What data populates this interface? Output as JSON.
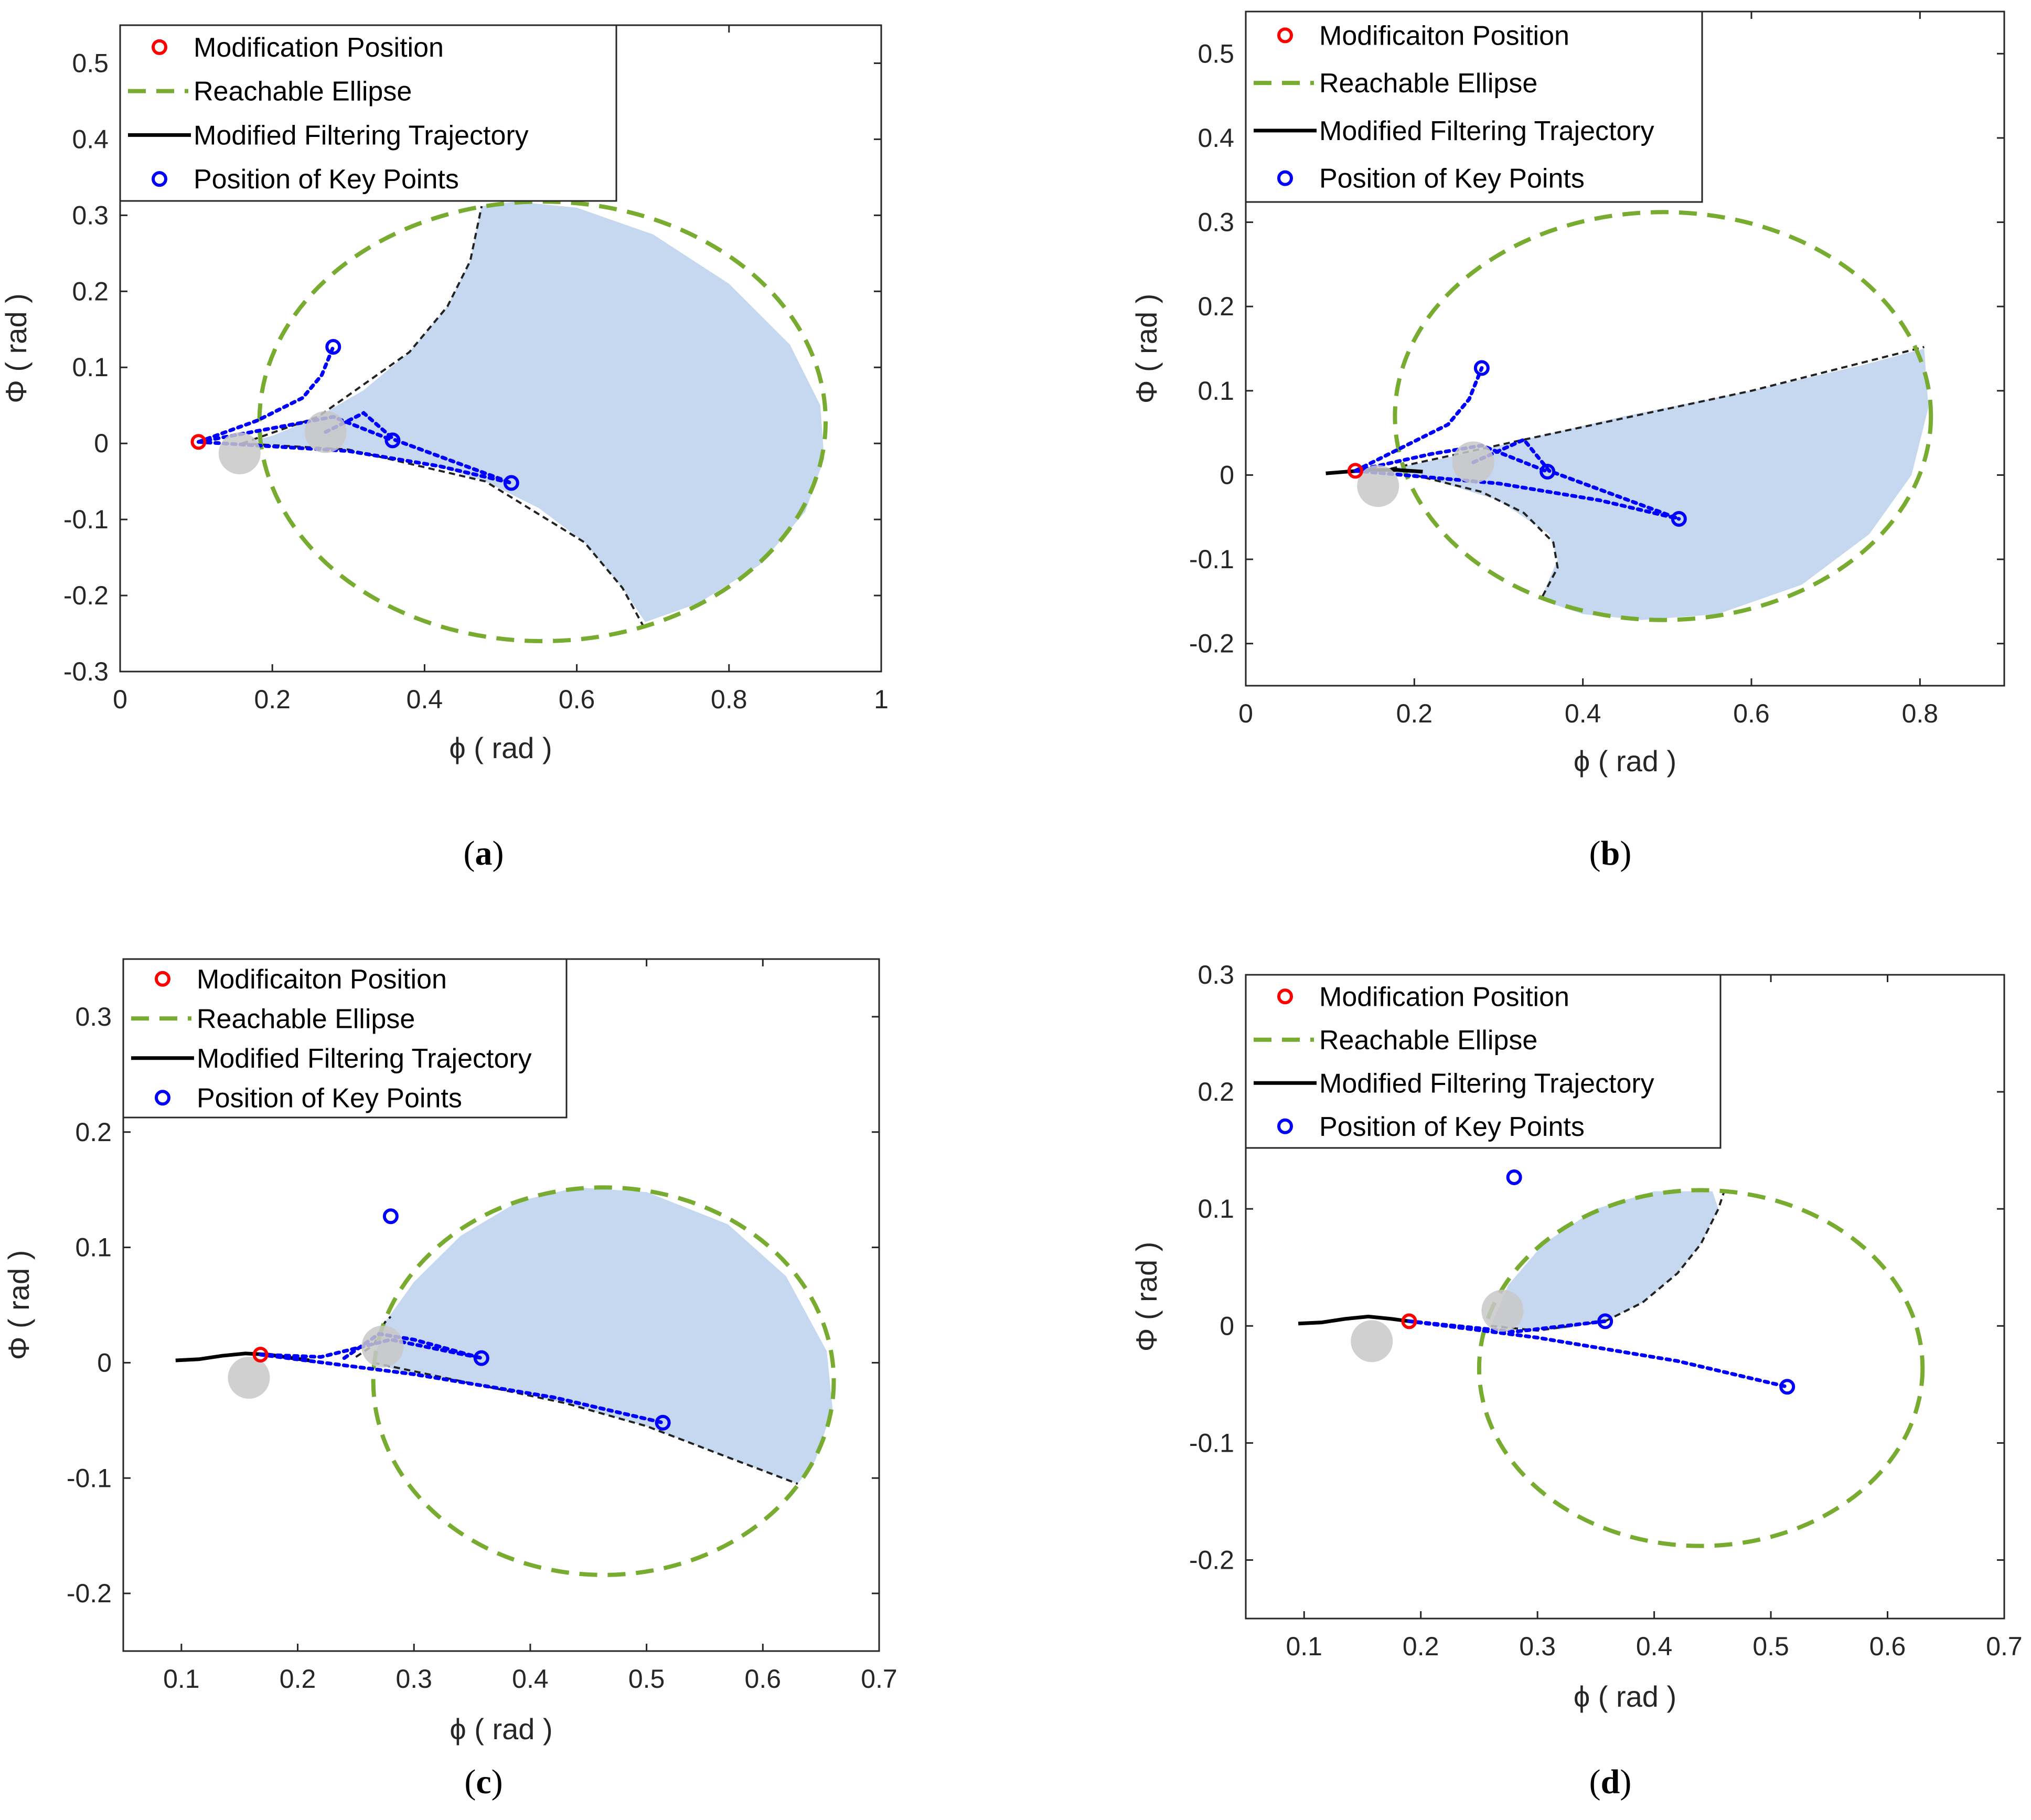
{
  "colors": {
    "ellipse": "#77AC30",
    "region": "#C5D8EF",
    "key": "#0000FF",
    "mod": "#FF0000",
    "traj": "#000000",
    "grey": "#C8C8C8"
  },
  "chart_data": [
    {
      "type": "scatter",
      "id": "a",
      "caption": "a",
      "xlabel": "ϕ ( rad )",
      "ylabel": "Φ ( rad )",
      "xlim": [
        0,
        1
      ],
      "ylim": [
        -0.3,
        0.55
      ],
      "xticks": [
        0,
        0.2,
        0.4,
        0.6,
        0.8,
        1
      ],
      "xtick_labels": [
        "0",
        "0.2",
        "0.4",
        "0.6",
        "0.8",
        "1"
      ],
      "yticks": [
        -0.3,
        -0.2,
        -0.1,
        0,
        0.1,
        0.2,
        0.3,
        0.4,
        0.5
      ],
      "ytick_labels": [
        "-0.3",
        "-0.2",
        "-0.1",
        "0",
        "0.1",
        "0.2",
        "0.3",
        "0.4",
        "0.5"
      ],
      "legend": [
        "Modification Position",
        "Reachable Ellipse",
        "Modified Filtering Trajectory",
        "Position of Key Points"
      ],
      "ellipse": {
        "cx": 0.555,
        "cy": 0.029,
        "rx": 0.372,
        "ry": 0.289
      },
      "modification_position": [
        0.103,
        0.002
      ],
      "key_points": [
        [
          0.28,
          0.127
        ],
        [
          0.358,
          0.004
        ],
        [
          0.514,
          -0.052
        ]
      ],
      "grey_markers": [
        [
          0.157,
          -0.013
        ],
        [
          0.27,
          0.015
        ]
      ],
      "trajectory": [],
      "region": [
        [
          0.16,
          0.0
        ],
        [
          0.2,
          0.01
        ],
        [
          0.26,
          0.035
        ],
        [
          0.32,
          0.07
        ],
        [
          0.38,
          0.12
        ],
        [
          0.43,
          0.18
        ],
        [
          0.46,
          0.24
        ],
        [
          0.47,
          0.29
        ],
        [
          0.475,
          0.312
        ],
        [
          0.52,
          0.318
        ],
        [
          0.6,
          0.31
        ],
        [
          0.7,
          0.275
        ],
        [
          0.8,
          0.21
        ],
        [
          0.88,
          0.13
        ],
        [
          0.92,
          0.05
        ],
        [
          0.925,
          -0.02
        ],
        [
          0.9,
          -0.09
        ],
        [
          0.84,
          -0.16
        ],
        [
          0.76,
          -0.21
        ],
        [
          0.69,
          -0.235
        ],
        [
          0.66,
          -0.19
        ],
        [
          0.61,
          -0.13
        ],
        [
          0.55,
          -0.085
        ],
        [
          0.48,
          -0.05
        ],
        [
          0.4,
          -0.025
        ],
        [
          0.3,
          -0.008
        ],
        [
          0.16,
          0.0
        ]
      ],
      "boundary": [
        [
          [
            0.16,
            0.0
          ],
          [
            0.26,
            0.035
          ],
          [
            0.38,
            0.12
          ],
          [
            0.43,
            0.18
          ],
          [
            0.46,
            0.24
          ],
          [
            0.475,
            0.312
          ]
        ],
        [
          [
            0.16,
            0.0
          ],
          [
            0.3,
            -0.008
          ],
          [
            0.48,
            -0.05
          ],
          [
            0.61,
            -0.13
          ],
          [
            0.66,
            -0.19
          ],
          [
            0.69,
            -0.245
          ]
        ]
      ],
      "key_paths": [
        [
          [
            0.103,
            0.002
          ],
          [
            0.18,
            0.03
          ],
          [
            0.24,
            0.06
          ],
          [
            0.265,
            0.09
          ],
          [
            0.28,
            0.127
          ]
        ],
        [
          [
            0.103,
            0.002
          ],
          [
            0.2,
            0.02
          ],
          [
            0.28,
            0.035
          ],
          [
            0.358,
            0.004
          ]
        ],
        [
          [
            0.103,
            0.002
          ],
          [
            0.3,
            -0.01
          ],
          [
            0.42,
            -0.03
          ],
          [
            0.514,
            -0.052
          ]
        ],
        [
          [
            0.27,
            0.015
          ],
          [
            0.32,
            0.04
          ],
          [
            0.36,
            0.005
          ],
          [
            0.514,
            -0.052
          ]
        ]
      ]
    },
    {
      "type": "scatter",
      "id": "b",
      "caption": "b",
      "xlabel": "ϕ ( rad )",
      "ylabel": "Φ ( rad )",
      "xlim": [
        0,
        0.9
      ],
      "ylim": [
        -0.25,
        0.55
      ],
      "xticks": [
        0,
        0.2,
        0.4,
        0.6,
        0.8
      ],
      "xtick_labels": [
        "0",
        "0.2",
        "0.4",
        "0.6",
        "0.8"
      ],
      "yticks": [
        -0.2,
        -0.1,
        0,
        0.1,
        0.2,
        0.3,
        0.4,
        0.5
      ],
      "ytick_labels": [
        "-0.2",
        "-0.1",
        "0",
        "0.1",
        "0.2",
        "0.3",
        "0.4",
        "0.5"
      ],
      "legend": [
        "Modificaiton Position",
        "Reachable Ellipse",
        "Modified Filtering Trajectory",
        "Position of Key Points"
      ],
      "ellipse": {
        "cx": 0.495,
        "cy": 0.07,
        "rx": 0.318,
        "ry": 0.242
      },
      "modification_position": [
        0.13,
        0.005
      ],
      "key_points": [
        [
          0.28,
          0.127
        ],
        [
          0.358,
          0.004
        ],
        [
          0.514,
          -0.052
        ]
      ],
      "grey_markers": [
        [
          0.157,
          -0.013
        ],
        [
          0.27,
          0.015
        ]
      ],
      "trajectory": [
        [
          0.095,
          0.002
        ],
        [
          0.12,
          0.004
        ],
        [
          0.15,
          0.006
        ],
        [
          0.18,
          0.006
        ],
        [
          0.21,
          0.004
        ]
      ],
      "region": [
        [
          0.16,
          0.005
        ],
        [
          0.26,
          0.025
        ],
        [
          0.33,
          0.042
        ],
        [
          0.45,
          0.07
        ],
        [
          0.6,
          0.1
        ],
        [
          0.73,
          0.13
        ],
        [
          0.805,
          0.15
        ],
        [
          0.81,
          0.08
        ],
        [
          0.79,
          0.0
        ],
        [
          0.74,
          -0.07
        ],
        [
          0.66,
          -0.13
        ],
        [
          0.56,
          -0.165
        ],
        [
          0.47,
          -0.172
        ],
        [
          0.4,
          -0.165
        ],
        [
          0.35,
          -0.148
        ],
        [
          0.37,
          -0.1
        ],
        [
          0.36,
          -0.07
        ],
        [
          0.3,
          -0.03
        ],
        [
          0.22,
          -0.005
        ],
        [
          0.16,
          0.005
        ]
      ],
      "boundary": [
        [
          [
            0.16,
            0.005
          ],
          [
            0.33,
            0.042
          ],
          [
            0.6,
            0.1
          ],
          [
            0.805,
            0.152
          ]
        ],
        [
          [
            0.2,
            0.0
          ],
          [
            0.28,
            -0.02
          ],
          [
            0.33,
            -0.045
          ],
          [
            0.365,
            -0.08
          ],
          [
            0.37,
            -0.11
          ],
          [
            0.35,
            -0.148
          ]
        ]
      ],
      "key_paths": [
        [
          [
            0.13,
            0.005
          ],
          [
            0.18,
            0.03
          ],
          [
            0.24,
            0.06
          ],
          [
            0.265,
            0.09
          ],
          [
            0.28,
            0.127
          ]
        ],
        [
          [
            0.13,
            0.005
          ],
          [
            0.22,
            0.025
          ],
          [
            0.28,
            0.035
          ],
          [
            0.358,
            0.004
          ]
        ],
        [
          [
            0.13,
            0.005
          ],
          [
            0.3,
            -0.01
          ],
          [
            0.42,
            -0.03
          ],
          [
            0.514,
            -0.052
          ]
        ],
        [
          [
            0.27,
            0.015
          ],
          [
            0.33,
            0.042
          ],
          [
            0.36,
            0.005
          ],
          [
            0.514,
            -0.052
          ]
        ]
      ]
    },
    {
      "type": "scatter",
      "id": "c",
      "caption": "c",
      "xlabel": "ϕ ( rad )",
      "ylabel": "Φ ( rad )",
      "xlim": [
        0.05,
        0.7
      ],
      "ylim": [
        -0.25,
        0.35
      ],
      "xticks": [
        0.1,
        0.2,
        0.3,
        0.4,
        0.5,
        0.6,
        0.7
      ],
      "xtick_labels": [
        "0.1",
        "0.2",
        "0.3",
        "0.4",
        "0.5",
        "0.6",
        "0.7"
      ],
      "yticks": [
        -0.2,
        -0.1,
        0,
        0.1,
        0.2,
        0.3
      ],
      "ytick_labels": [
        "-0.2",
        "-0.1",
        "0",
        "0.1",
        "0.2",
        "0.3"
      ],
      "legend": [
        "Modificaiton Position",
        "Reachable Ellipse",
        "Modified Filtering Trajectory",
        "Position of Key Points"
      ],
      "ellipse": {
        "cx": 0.463,
        "cy": -0.016,
        "rx": 0.198,
        "ry": 0.168
      },
      "modification_position": [
        0.168,
        0.007
      ],
      "key_points": [
        [
          0.28,
          0.127
        ],
        [
          0.358,
          0.004
        ],
        [
          0.514,
          -0.052
        ]
      ],
      "grey_markers": [
        [
          0.158,
          -0.013
        ],
        [
          0.273,
          0.014
        ]
      ],
      "trajectory": [
        [
          0.095,
          0.002
        ],
        [
          0.115,
          0.003
        ],
        [
          0.135,
          0.006
        ],
        [
          0.155,
          0.008
        ],
        [
          0.175,
          0.007
        ],
        [
          0.195,
          0.004
        ],
        [
          0.21,
          0.002
        ]
      ],
      "region": [
        [
          0.265,
          0.0
        ],
        [
          0.275,
          0.035
        ],
        [
          0.3,
          0.07
        ],
        [
          0.34,
          0.11
        ],
        [
          0.39,
          0.14
        ],
        [
          0.44,
          0.152
        ],
        [
          0.5,
          0.148
        ],
        [
          0.57,
          0.12
        ],
        [
          0.62,
          0.075
        ],
        [
          0.655,
          0.01
        ],
        [
          0.66,
          -0.04
        ],
        [
          0.645,
          -0.085
        ],
        [
          0.63,
          -0.105
        ],
        [
          0.57,
          -0.082
        ],
        [
          0.5,
          -0.055
        ],
        [
          0.43,
          -0.035
        ],
        [
          0.35,
          -0.018
        ],
        [
          0.29,
          -0.008
        ],
        [
          0.265,
          0.0
        ]
      ],
      "boundary": [
        [
          [
            0.265,
            0.0
          ],
          [
            0.35,
            -0.018
          ],
          [
            0.43,
            -0.035
          ],
          [
            0.5,
            -0.055
          ],
          [
            0.57,
            -0.082
          ],
          [
            0.63,
            -0.105
          ]
        ],
        [
          [
            0.25,
            0.005
          ],
          [
            0.265,
            0.015
          ],
          [
            0.275,
            0.035
          ],
          [
            0.28,
            0.04
          ]
        ]
      ],
      "key_paths": [
        [
          [
            0.168,
            0.007
          ],
          [
            0.22,
            0.005
          ],
          [
            0.28,
            0.02
          ],
          [
            0.358,
            0.004
          ]
        ],
        [
          [
            0.168,
            0.007
          ],
          [
            0.3,
            -0.01
          ],
          [
            0.42,
            -0.03
          ],
          [
            0.514,
            -0.052
          ]
        ],
        [
          [
            0.24,
            0.004
          ],
          [
            0.27,
            0.025
          ],
          [
            0.3,
            0.02
          ],
          [
            0.358,
            0.004
          ]
        ]
      ]
    },
    {
      "type": "scatter",
      "id": "d",
      "caption": "d",
      "xlabel": "ϕ ( rad )",
      "ylabel": "Φ ( rad )",
      "xlim": [
        0.05,
        0.7
      ],
      "ylim": [
        -0.25,
        0.3
      ],
      "xticks": [
        0.1,
        0.2,
        0.3,
        0.4,
        0.5,
        0.6,
        0.7
      ],
      "xtick_labels": [
        "0.1",
        "0.2",
        "0.3",
        "0.4",
        "0.5",
        "0.6",
        "0.7"
      ],
      "yticks": [
        -0.2,
        -0.1,
        0,
        0.1,
        0.2,
        0.3
      ],
      "ytick_labels": [
        "-0.2",
        "-0.1",
        "0",
        "0.1",
        "0.2",
        "0.3"
      ],
      "legend": [
        "Modification Position",
        "Reachable Ellipse",
        "Modified Filtering Trajectory",
        "Position of Key Points"
      ],
      "ellipse": {
        "cx": 0.44,
        "cy": -0.036,
        "rx": 0.19,
        "ry": 0.152
      },
      "modification_position": [
        0.19,
        0.004
      ],
      "key_points": [
        [
          0.28,
          0.127
        ],
        [
          0.358,
          0.004
        ],
        [
          0.514,
          -0.052
        ]
      ],
      "grey_markers": [
        [
          0.158,
          -0.013
        ],
        [
          0.27,
          0.013
        ]
      ],
      "trajectory": [
        [
          0.095,
          0.002
        ],
        [
          0.115,
          0.003
        ],
        [
          0.135,
          0.006
        ],
        [
          0.155,
          0.008
        ],
        [
          0.175,
          0.006
        ],
        [
          0.19,
          0.004
        ]
      ],
      "region": [
        [
          0.26,
          0.0
        ],
        [
          0.275,
          0.035
        ],
        [
          0.305,
          0.07
        ],
        [
          0.35,
          0.1
        ],
        [
          0.4,
          0.115
        ],
        [
          0.45,
          0.115
        ],
        [
          0.455,
          0.1
        ],
        [
          0.44,
          0.07
        ],
        [
          0.42,
          0.045
        ],
        [
          0.39,
          0.02
        ],
        [
          0.358,
          0.004
        ],
        [
          0.32,
          -0.003
        ],
        [
          0.28,
          -0.002
        ],
        [
          0.26,
          0.0
        ]
      ],
      "boundary": [
        [
          [
            0.358,
            0.004
          ],
          [
            0.39,
            0.02
          ],
          [
            0.42,
            0.045
          ],
          [
            0.44,
            0.07
          ],
          [
            0.455,
            0.1
          ],
          [
            0.46,
            0.115
          ]
        ],
        [
          [
            0.26,
            0.0
          ],
          [
            0.3,
            -0.004
          ],
          [
            0.358,
            0.004
          ]
        ]
      ],
      "key_paths": [
        [
          [
            0.19,
            0.004
          ],
          [
            0.28,
            -0.005
          ],
          [
            0.358,
            0.004
          ]
        ],
        [
          [
            0.19,
            0.004
          ],
          [
            0.3,
            -0.01
          ],
          [
            0.42,
            -0.03
          ],
          [
            0.514,
            -0.052
          ]
        ]
      ]
    }
  ]
}
